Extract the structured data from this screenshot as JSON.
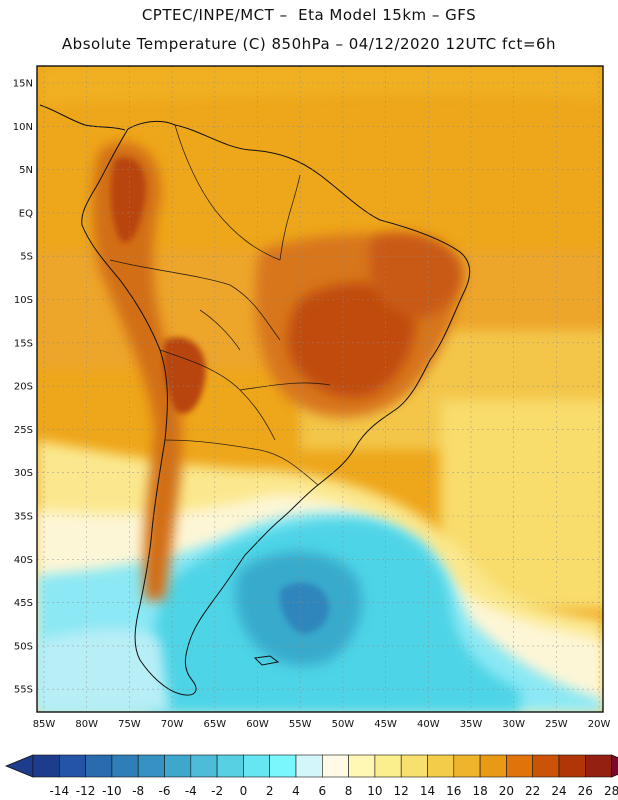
{
  "header": {
    "line1": "CPTEC/INPE/MCT –  Eta Model 15km – GFS",
    "line2": "Absolute Temperature (C) 850hPa – 04/12/2020 12UTC fct=6h"
  },
  "axes": {
    "lat_labels": [
      "15N",
      "10N",
      "5N",
      "EQ",
      "5S",
      "10S",
      "15S",
      "20S",
      "25S",
      "30S",
      "35S",
      "40S",
      "45S",
      "50S",
      "55S"
    ],
    "lon_labels": [
      "85W",
      "80W",
      "75W",
      "70W",
      "65W",
      "60W",
      "55W",
      "50W",
      "45W",
      "40W",
      "35W",
      "30W",
      "25W",
      "20W"
    ]
  },
  "colorbar": {
    "ticks": [
      "-14",
      "-12",
      "-10",
      "-8",
      "-6",
      "-4",
      "-2",
      "0",
      "2",
      "4",
      "6",
      "8",
      "10",
      "12",
      "14",
      "16",
      "18",
      "20",
      "22",
      "24",
      "26",
      "28"
    ],
    "under_color": "#1e3c8c",
    "over_color": "#7a0a2a",
    "colors": [
      "#1e3c8c",
      "#2454a6",
      "#2a6aae",
      "#2e7eb8",
      "#3592c2",
      "#3ea8cc",
      "#4cbcd8",
      "#58d0e4",
      "#66e6f2",
      "#7af7fc",
      "#d2f6fa",
      "#fefae6",
      "#fef8b4",
      "#fbee8c",
      "#f8e06e",
      "#f3cc4a",
      "#eeb42c",
      "#e99a14",
      "#e0740a",
      "#cc5208",
      "#b03608",
      "#942012",
      "#7a0a2a"
    ]
  },
  "regions": [
    {
      "name": "north-tropical-background",
      "color": "#eea61a"
    },
    {
      "name": "central-brazil-warm-core",
      "color": "#c8540e"
    },
    {
      "name": "cold-air-mass-south-atlantic",
      "color": "#4ed4e6"
    },
    {
      "name": "cold-core-argentina",
      "color": "#38aacc"
    },
    {
      "name": "andes-warm-strip",
      "color": "#d26e12"
    },
    {
      "name": "warm-front-band",
      "color": "#fbe88e"
    }
  ]
}
